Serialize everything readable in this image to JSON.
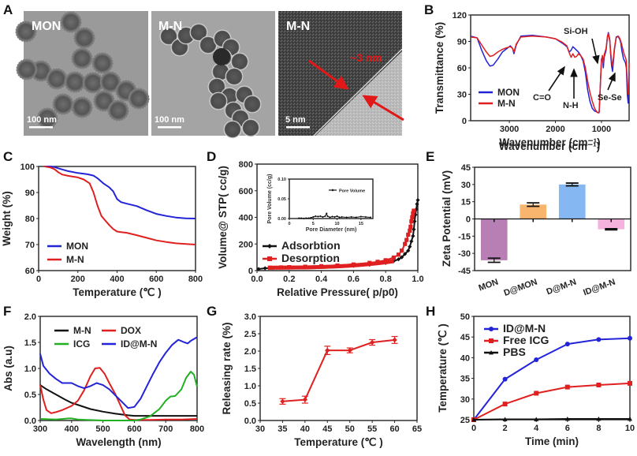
{
  "figure": {
    "panel_labels": [
      "A",
      "B",
      "C",
      "D",
      "E",
      "F",
      "G",
      "H"
    ]
  },
  "panel_a": {
    "images": [
      {
        "label": "MON",
        "scale_bar": "100 nm",
        "tone": "#9a9a9a"
      },
      {
        "label": "M-N",
        "scale_bar": "100 nm",
        "tone": "#a2a2a2"
      },
      {
        "label": "M-N",
        "scale_bar": "5 nm",
        "tone": "#555555",
        "annotation": "~3 nm"
      }
    ]
  },
  "chart_data": [
    {
      "id": "B",
      "type": "line",
      "title": "",
      "xlabel": "Wavenumber (cm⁻¹)",
      "ylabel": "Transmittance (%)",
      "xlim": [
        3840,
        400
      ],
      "ylim": [
        0,
        120
      ],
      "xticks": [
        3000,
        2000,
        1000
      ],
      "yticks": [
        0,
        30,
        60,
        90,
        120
      ],
      "legend": "bottom-left",
      "series": [
        {
          "name": "MON",
          "color": "#2323d8",
          "x": [
            3840,
            3700,
            3600,
            3500,
            3420,
            3350,
            3250,
            3150,
            3050,
            2980,
            2930,
            2900,
            2850,
            2750,
            2500,
            2200,
            2000,
            1850,
            1750,
            1700,
            1660,
            1620,
            1580,
            1540,
            1500,
            1450,
            1400,
            1350,
            1300,
            1250,
            1200,
            1150,
            1100,
            1080,
            1050,
            1000,
            980,
            960,
            940,
            900,
            870,
            850,
            820,
            800,
            780,
            760,
            720,
            680,
            640,
            620,
            600,
            580,
            560,
            540,
            520,
            500,
            480,
            460,
            440,
            420,
            400
          ],
          "y": [
            96,
            94,
            80,
            68,
            62,
            63,
            70,
            78,
            82,
            85,
            82,
            76,
            86,
            96,
            97,
            95,
            93,
            88,
            84,
            78,
            80,
            84,
            82,
            80,
            78,
            74,
            68,
            55,
            35,
            22,
            14,
            11,
            10,
            9,
            9,
            70,
            72,
            60,
            72,
            80,
            95,
            100,
            92,
            75,
            62,
            56,
            80,
            95,
            96,
            94,
            92,
            88,
            80,
            75,
            70,
            68,
            66,
            60,
            30,
            20,
            55
          ]
        },
        {
          "name": "M-N",
          "color": "#e02020",
          "x": [
            3840,
            3700,
            3600,
            3500,
            3420,
            3350,
            3250,
            3150,
            3050,
            2980,
            2930,
            2900,
            2850,
            2750,
            2500,
            2200,
            2000,
            1850,
            1750,
            1700,
            1660,
            1620,
            1580,
            1540,
            1500,
            1450,
            1400,
            1350,
            1300,
            1250,
            1200,
            1150,
            1100,
            1080,
            1050,
            1000,
            980,
            960,
            940,
            900,
            870,
            850,
            820,
            800,
            780,
            760,
            720,
            680,
            640,
            620,
            600,
            580,
            560,
            540,
            520,
            500,
            480,
            460,
            440,
            420,
            400
          ],
          "y": [
            95,
            94,
            86,
            78,
            73,
            74,
            78,
            81,
            83,
            84,
            82,
            78,
            87,
            95,
            96,
            95,
            93,
            89,
            85,
            77,
            72,
            76,
            72,
            73,
            76,
            74,
            70,
            60,
            45,
            32,
            22,
            14,
            10,
            9,
            10,
            68,
            74,
            65,
            75,
            82,
            96,
            99,
            90,
            78,
            68,
            62,
            82,
            94,
            96,
            95,
            93,
            90,
            86,
            82,
            78,
            74,
            72,
            68,
            40,
            30,
            65
          ]
        }
      ],
      "annotations": [
        {
          "text": "Si-OH"
        },
        {
          "text": "C=O"
        },
        {
          "text": "N-H"
        },
        {
          "text": "Se-Se"
        }
      ]
    },
    {
      "id": "C",
      "type": "line",
      "title": "",
      "xlabel": "Temperature (℃ )",
      "ylabel": "Weight (%)",
      "xlim": [
        0,
        800
      ],
      "ylim": [
        60,
        100
      ],
      "xticks": [
        0,
        200,
        400,
        600,
        800
      ],
      "yticks": [
        60,
        70,
        80,
        90,
        100
      ],
      "legend": "bottom-left",
      "series": [
        {
          "name": "MON",
          "color": "#2323d8",
          "x": [
            30,
            60,
            80,
            100,
            150,
            200,
            250,
            280,
            300,
            330,
            360,
            380,
            400,
            420,
            450,
            500,
            550,
            600,
            650,
            700,
            750,
            800
          ],
          "y": [
            100,
            100,
            99.8,
            99.3,
            98.2,
            97.5,
            97,
            96.5,
            95.5,
            93.5,
            92,
            90.5,
            87.5,
            86.3,
            85.7,
            84.8,
            83.2,
            81.8,
            81,
            80.4,
            80.1,
            80
          ]
        },
        {
          "name": "M-N",
          "color": "#e02020",
          "x": [
            30,
            60,
            80,
            100,
            120,
            150,
            200,
            230,
            260,
            280,
            300,
            320,
            340,
            360,
            380,
            400,
            420,
            450,
            500,
            550,
            600,
            650,
            700,
            750,
            800
          ],
          "y": [
            100,
            99.6,
            99,
            97.8,
            96.9,
            96.4,
            95.8,
            95,
            93.5,
            90,
            85,
            81,
            79.2,
            77.5,
            76,
            75,
            74.8,
            74.5,
            73.6,
            72.6,
            71.6,
            71,
            70.5,
            70.2,
            70
          ]
        }
      ]
    },
    {
      "id": "D",
      "type": "scatter",
      "title": "",
      "xlabel": "Relative Pressure( p/p0)",
      "ylabel": "Volume@ STP( cc/g)",
      "xlim": [
        0,
        1.0
      ],
      "ylim": [
        0,
        800
      ],
      "xticks": [
        0.0,
        0.2,
        0.4,
        0.6,
        0.8,
        1.0
      ],
      "yticks": [
        0,
        200,
        400,
        600,
        800
      ],
      "legend": "left",
      "series": [
        {
          "name": "Adsorbtion",
          "color": "#111111",
          "marker": "diamond",
          "x": [
            0.01,
            0.05,
            0.1,
            0.2,
            0.3,
            0.4,
            0.5,
            0.6,
            0.7,
            0.8,
            0.85,
            0.88,
            0.9,
            0.92,
            0.94,
            0.95,
            0.96,
            0.97,
            0.975,
            0.98,
            0.985,
            0.99,
            0.995,
            1.0
          ],
          "y": [
            12,
            18,
            20,
            22,
            24,
            27,
            31,
            36,
            44,
            58,
            72,
            85,
            100,
            125,
            150,
            180,
            220,
            260,
            310,
            370,
            420,
            460,
            500,
            530
          ]
        },
        {
          "name": "Desorption",
          "color": "#e02020",
          "marker": "square",
          "x": [
            0.08,
            0.15,
            0.2,
            0.3,
            0.4,
            0.5,
            0.6,
            0.7,
            0.75,
            0.8,
            0.85,
            0.88,
            0.9,
            0.92,
            0.93,
            0.94,
            0.95,
            0.955,
            0.96,
            0.965,
            0.97,
            0.975
          ],
          "y": [
            22,
            24,
            26,
            29,
            33,
            38,
            46,
            58,
            66,
            78,
            98,
            120,
            150,
            200,
            230,
            270,
            300,
            330,
            370,
            400,
            430,
            450
          ]
        }
      ],
      "inset": {
        "type": "line",
        "xlabel": "Pore Diameter (nm)",
        "ylabel": "Pore Volume (cc/g)",
        "xlim": [
          0,
          17.5
        ],
        "ylim": [
          0,
          0.1
        ],
        "xticks": [
          0,
          5,
          10,
          15
        ],
        "yticks": [
          0.0,
          0.05,
          0.1
        ],
        "legend": "top-right",
        "series": [
          {
            "name": "Pore Volume",
            "color": "#111111",
            "x": [
              2,
              2.5,
              3,
              3.5,
              4,
              4.5,
              5,
              5.5,
              6,
              6.5,
              7,
              7.5,
              7.8,
              8,
              8.5,
              9,
              9.5,
              10,
              10.5,
              11,
              12,
              13,
              14,
              15,
              16,
              17
            ],
            "y": [
              0.001,
              0.001,
              0.0,
              0.001,
              0.001,
              0.002,
              0.004,
              0.006,
              0.005,
              0.006,
              0.004,
              0.006,
              0.013,
              0.006,
              0.003,
              0.005,
              0.004,
              0.006,
              0.003,
              0.004,
              0.003,
              0.004,
              0.003,
              0.005,
              0.004,
              0.003
            ]
          }
        ]
      }
    },
    {
      "id": "E",
      "type": "bar",
      "title": "",
      "xlabel": "",
      "ylabel": "Zeta Potential (mV)",
      "ylim": [
        -45,
        45
      ],
      "yticks": [
        -45,
        -30,
        -15,
        0,
        15,
        30,
        45
      ],
      "categories": [
        "MON",
        "D@MON",
        "D@M-N",
        "ID@M-N"
      ],
      "values": [
        -36,
        12.5,
        30,
        -9
      ],
      "errors": [
        1.8,
        1.5,
        1.2,
        0.5
      ],
      "colors": [
        "#b77fb4",
        "#f8b56e",
        "#85b8f2",
        "#f4b2dc"
      ]
    },
    {
      "id": "F",
      "type": "line",
      "title": "",
      "xlabel": "Wavelength (nm)",
      "ylabel": "Abs (a.u)",
      "xlim": [
        300,
        800
      ],
      "ylim": [
        0,
        2.0
      ],
      "xticks": [
        300,
        400,
        500,
        600,
        700,
        800
      ],
      "yticks": [
        0.0,
        0.5,
        1.0,
        1.5,
        2.0
      ],
      "legend": "top",
      "series": [
        {
          "name": "M-N",
          "color": "#111111",
          "x": [
            300,
            320,
            350,
            380,
            400,
            430,
            460,
            500,
            540,
            580,
            600,
            650,
            700,
            750,
            800
          ],
          "y": [
            0.68,
            0.6,
            0.5,
            0.4,
            0.34,
            0.28,
            0.22,
            0.17,
            0.13,
            0.1,
            0.09,
            0.09,
            0.09,
            0.09,
            0.09
          ]
        },
        {
          "name": "DOX",
          "color": "#e02020",
          "x": [
            300,
            310,
            320,
            335,
            350,
            370,
            400,
            420,
            440,
            460,
            475,
            490,
            505,
            520,
            540,
            555,
            570,
            585,
            600,
            650,
            700,
            750,
            800
          ],
          "y": [
            0.68,
            0.4,
            0.2,
            0.14,
            0.16,
            0.2,
            0.28,
            0.38,
            0.58,
            0.85,
            1.0,
            1.01,
            0.9,
            0.72,
            0.5,
            0.3,
            0.1,
            0.02,
            0.01,
            0.01,
            0.02,
            0.02,
            0.03
          ]
        },
        {
          "name": "ICG",
          "color": "#22b022",
          "x": [
            300,
            350,
            390,
            400,
            420,
            450,
            500,
            550,
            600,
            620,
            650,
            680,
            700,
            715,
            730,
            750,
            765,
            780,
            790,
            800
          ],
          "y": [
            0.03,
            0.02,
            0.04,
            0.04,
            0.02,
            0.01,
            0.0,
            0.0,
            0.0,
            0.02,
            0.08,
            0.22,
            0.38,
            0.46,
            0.47,
            0.6,
            0.82,
            0.94,
            0.88,
            0.65
          ]
        },
        {
          "name": "ID@M-N",
          "color": "#2323d8",
          "x": [
            300,
            310,
            330,
            350,
            370,
            400,
            420,
            440,
            460,
            480,
            500,
            520,
            540,
            560,
            580,
            600,
            620,
            640,
            660,
            680,
            700,
            720,
            740,
            760,
            770,
            780,
            800
          ],
          "y": [
            1.28,
            1.05,
            0.9,
            0.8,
            0.72,
            0.72,
            0.66,
            0.62,
            0.66,
            0.72,
            0.68,
            0.6,
            0.48,
            0.36,
            0.24,
            0.26,
            0.42,
            0.66,
            0.9,
            1.12,
            1.3,
            1.45,
            1.55,
            1.5,
            1.48,
            1.53,
            1.6
          ]
        }
      ]
    },
    {
      "id": "G",
      "type": "line",
      "title": "",
      "xlabel": "Temperature (℃ )",
      "ylabel": "Releasing rate (%)",
      "xlim": [
        30,
        65
      ],
      "ylim": [
        0,
        3.0
      ],
      "xticks": [
        30,
        35,
        40,
        45,
        50,
        55,
        60,
        65
      ],
      "yticks": [
        0.0,
        0.5,
        1.0,
        1.5,
        2.0,
        2.5,
        3.0
      ],
      "series": [
        {
          "name": "Releasing rate",
          "color": "#e02020",
          "x": [
            35,
            40,
            45,
            50,
            55,
            60
          ],
          "y": [
            0.55,
            0.6,
            2.02,
            2.02,
            2.25,
            2.32
          ],
          "errors": [
            0.08,
            0.1,
            0.12,
            0.07,
            0.08,
            0.1
          ]
        }
      ]
    },
    {
      "id": "H",
      "type": "line",
      "title": "",
      "xlabel": "Time (min)",
      "ylabel": "Temperature (℃ )",
      "xlim": [
        0,
        10
      ],
      "ylim": [
        25,
        50
      ],
      "xticks": [
        0,
        2,
        4,
        6,
        8,
        10
      ],
      "yticks": [
        25,
        30,
        35,
        40,
        45,
        50
      ],
      "legend": "top-left",
      "series": [
        {
          "name": "ID@M-N",
          "color": "#2323d8",
          "marker": "circle",
          "x": [
            0,
            2,
            4,
            6,
            8,
            10
          ],
          "y": [
            25,
            34.8,
            39.5,
            43.3,
            44.4,
            44.7
          ]
        },
        {
          "name": "Free ICG",
          "color": "#e02020",
          "marker": "square",
          "x": [
            0,
            2,
            4,
            6,
            8,
            10
          ],
          "y": [
            25,
            28.8,
            31.4,
            32.9,
            33.4,
            33.8
          ]
        },
        {
          "name": "PBS",
          "color": "#111111",
          "marker": "triangle",
          "x": [
            0,
            2,
            4,
            6,
            8,
            10
          ],
          "y": [
            25,
            25.1,
            25.1,
            25.2,
            25.2,
            25.2
          ]
        }
      ]
    }
  ]
}
